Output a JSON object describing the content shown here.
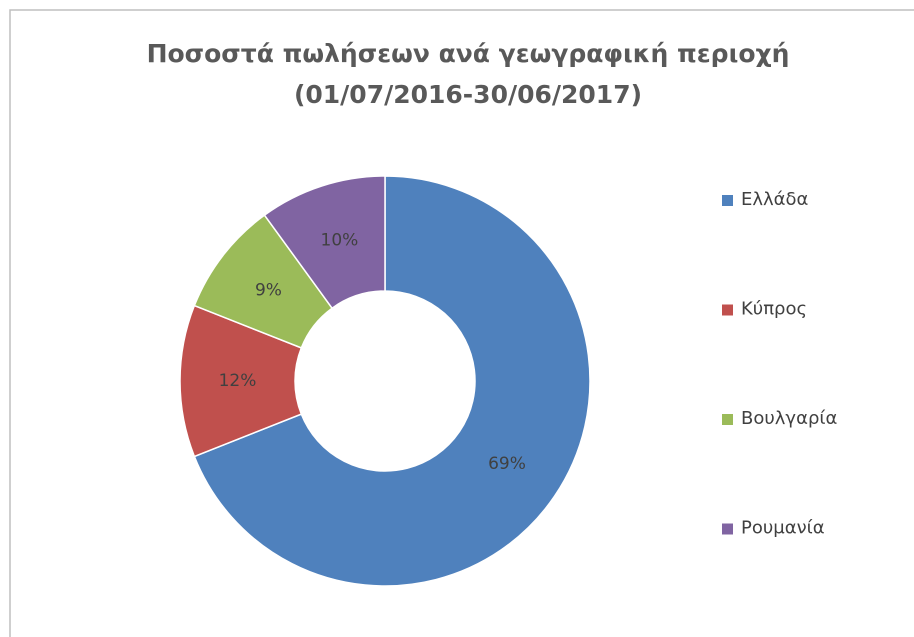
{
  "chart_data": {
    "type": "pie",
    "title": "Ποσοστά πωλήσεων ανά γεωγραφική περιοχή",
    "subtitle": "(01/07/2016-30/06/2017)",
    "categories": [
      "Ελλάδα",
      "Κύπρος",
      "Βουλγαρία",
      "Ρουμανία"
    ],
    "values": [
      69,
      12,
      9,
      10
    ],
    "value_labels": [
      "69%",
      "12%",
      "9%",
      "10%"
    ],
    "colors": [
      "#4f81bd",
      "#c0504d",
      "#9bbb59",
      "#8064a2"
    ],
    "legend": "right"
  }
}
